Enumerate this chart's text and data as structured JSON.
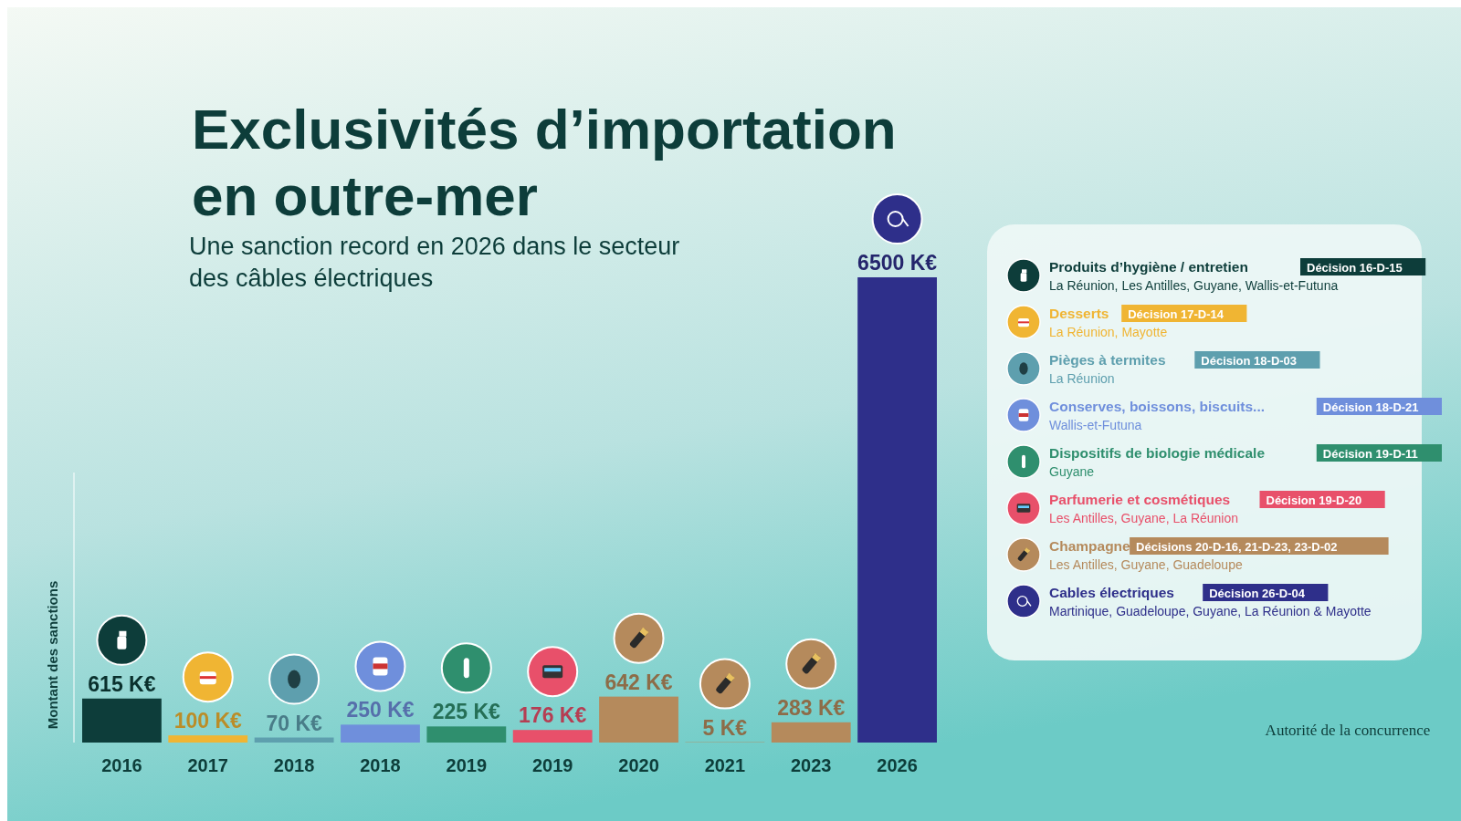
{
  "chart_data": {
    "type": "bar",
    "title": "Exclusivités d’importation en outre-mer",
    "subtitle": "Une sanction record en 2026 dans le secteur des câbles électriques",
    "ylabel": "Montant des sanctions",
    "categories": [
      "2016",
      "2017",
      "2018",
      "2018",
      "2019",
      "2019",
      "2020",
      "2021",
      "2023",
      "2026"
    ],
    "tick_labels": "x",
    "legend": "right",
    "series": [
      {
        "name": "Produits d’hygiène / entretien",
        "color": "#0d3d3a",
        "values": [
          615,
          null,
          null,
          null,
          null,
          null,
          null,
          null,
          null,
          null
        ],
        "value_labels": [
          "615 K€",
          null,
          null,
          null,
          null,
          null,
          null,
          null,
          null,
          null
        ]
      },
      {
        "name": "Desserts",
        "color": "#f0b533",
        "values": [
          null,
          100,
          null,
          null,
          null,
          null,
          null,
          null,
          null,
          null
        ],
        "value_labels": [
          null,
          "100 K€",
          null,
          null,
          null,
          null,
          null,
          null,
          null,
          null
        ]
      },
      {
        "name": "Pièges à termites",
        "color": "#5e9fae",
        "values": [
          null,
          null,
          70,
          null,
          null,
          null,
          null,
          null,
          null,
          null
        ],
        "value_labels": [
          null,
          null,
          "70 K€",
          null,
          null,
          null,
          null,
          null,
          null,
          null
        ]
      },
      {
        "name": "Conserves, boissons, biscuits...",
        "color": "#6f8fdc",
        "values": [
          null,
          null,
          null,
          250,
          null,
          null,
          null,
          null,
          null,
          null
        ],
        "value_labels": [
          null,
          null,
          null,
          "250 K€",
          null,
          null,
          null,
          null,
          null,
          null
        ]
      },
      {
        "name": "Dispositifs de biologie médicale",
        "color": "#2f8f6e",
        "values": [
          null,
          null,
          null,
          null,
          225,
          null,
          null,
          null,
          null,
          null
        ],
        "value_labels": [
          null,
          null,
          null,
          null,
          "225 K€",
          null,
          null,
          null,
          null,
          null
        ]
      },
      {
        "name": "Parfumerie et cosmétiques",
        "color": "#e8506a",
        "values": [
          null,
          null,
          null,
          null,
          null,
          176,
          null,
          null,
          null,
          null
        ],
        "value_labels": [
          null,
          null,
          null,
          null,
          null,
          "176 K€",
          null,
          null,
          null,
          null
        ]
      },
      {
        "name": "Champagne",
        "color": "#b58a5c",
        "values": [
          null,
          null,
          null,
          null,
          null,
          null,
          642,
          5,
          283,
          null
        ],
        "value_labels": [
          null,
          null,
          null,
          null,
          null,
          null,
          "642 K€",
          "5 K€",
          "283 K€",
          null
        ]
      },
      {
        "name": "Cables électriques",
        "color": "#2e2f8a",
        "values": [
          null,
          null,
          null,
          null,
          null,
          null,
          null,
          null,
          null,
          6500
        ],
        "value_labels": [
          null,
          null,
          null,
          null,
          null,
          null,
          null,
          null,
          null,
          "6500 K€"
        ]
      }
    ],
    "annotations": [
      "Décision 16-D-15",
      "La Réunion, Les Antilles, Guyane, Wallis-et-Futuna",
      "Décision 17-D-14",
      "La Réunion, Mayotte",
      "Décision 18-D-03",
      "La Réunion",
      "Décision 18-D-21",
      "Wallis-et-Futuna",
      "Décision 19-D-11",
      "Guyane",
      "Décision 19-D-20",
      "Les Antilles, Guyane, La Réunion",
      "Décisions 20-D-16, 21-D-23, 23-D-02",
      "Les Antilles, Guyane, Guadeloupe",
      "Décision 26-D-04",
      "Martinique, Guadeloupe, Guyane, La Réunion & Mayotte",
      "Autorité de la concurrence"
    ]
  }
}
